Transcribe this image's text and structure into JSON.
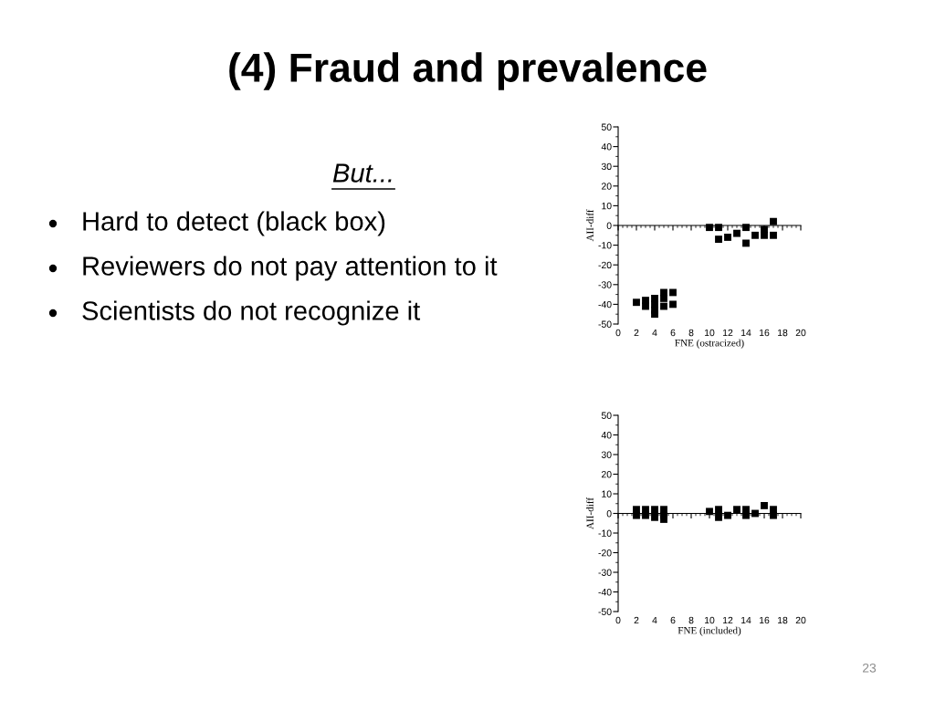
{
  "chart_data": [
    {
      "type": "other",
      "title": "(4) Fraud and prevalence",
      "subtitle": "But...",
      "annotations": [
        "Hard to detect (black box)",
        "Reviewers do not pay attention to it",
        "Scientists do not recognize it",
        "23"
      ]
    },
    {
      "type": "scatter",
      "xlabel": "FNE (ostracized)",
      "ylabel": "AII-diff",
      "marker": "square",
      "color": "#000000",
      "x": [
        2,
        3,
        3,
        4,
        4,
        4,
        4,
        5,
        5,
        5,
        6,
        6,
        10,
        11,
        11,
        12,
        13,
        14,
        14,
        15,
        16,
        16,
        17,
        17
      ],
      "values": [
        -39,
        -38,
        -41,
        -37,
        -40,
        -43,
        -45,
        -34,
        -37,
        -41,
        -34,
        -40,
        -1,
        -1,
        -7,
        -6,
        -4,
        -1,
        -9,
        -5,
        -2,
        -5,
        2,
        -5
      ],
      "xlim": [
        0,
        20
      ],
      "xticks": [
        0,
        2,
        4,
        6,
        8,
        10,
        12,
        14,
        16,
        18,
        20
      ],
      "ylim": [
        -50,
        50
      ],
      "yticks": [
        -50,
        -40,
        -30,
        -20,
        -10,
        0,
        10,
        20,
        30,
        40,
        50
      ]
    },
    {
      "type": "scatter",
      "xlabel": "FNE (included)",
      "ylabel": "AII-diff",
      "marker": "square",
      "color": "#000000",
      "x": [
        2,
        2,
        3,
        3,
        4,
        4,
        5,
        5,
        5,
        10,
        11,
        11,
        12,
        13,
        14,
        14,
        15,
        16,
        17,
        17
      ],
      "values": [
        2,
        -1,
        2,
        -1,
        2,
        -2,
        2,
        -1,
        -3,
        1,
        2,
        -2,
        -1,
        2,
        2,
        -1,
        0,
        4,
        2,
        -1
      ],
      "xlim": [
        0,
        20
      ],
      "xticks": [
        0,
        2,
        4,
        6,
        8,
        10,
        12,
        14,
        16,
        18,
        20
      ],
      "ylim": [
        -50,
        50
      ],
      "yticks": [
        -50,
        -40,
        -30,
        -20,
        -10,
        0,
        10,
        20,
        30,
        40,
        50
      ]
    }
  ]
}
